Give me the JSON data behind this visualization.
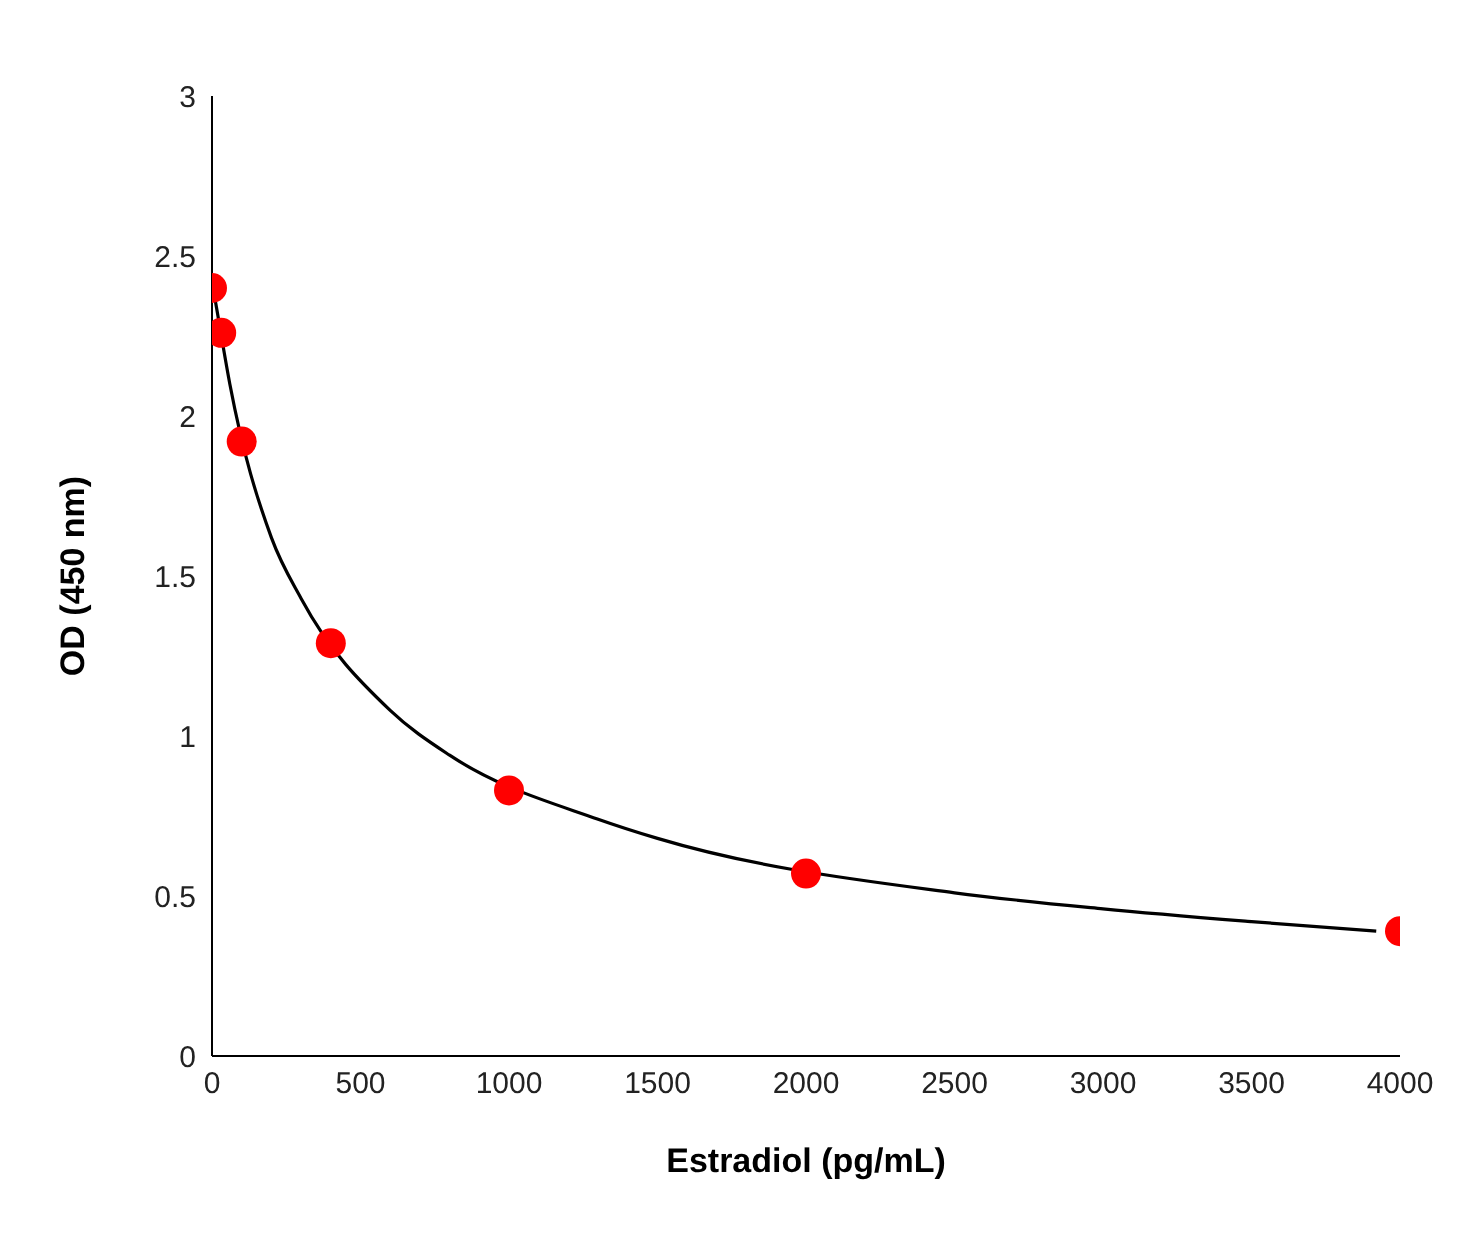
{
  "chart_data": {
    "type": "scatter",
    "xlabel": "Estradiol (pg/mL)",
    "ylabel": "OD (450 nm)",
    "xlim": [
      0,
      4000
    ],
    "ylim": [
      0,
      3
    ],
    "xticks": [
      0,
      500,
      1000,
      1500,
      2000,
      2500,
      3000,
      3500,
      4000
    ],
    "yticks": [
      0,
      0.5,
      1,
      1.5,
      2,
      2.5,
      3
    ],
    "grid": false,
    "series": [
      {
        "type": "line",
        "color": "#000000",
        "marker": "none",
        "line_style": "solid",
        "x": [
          0,
          15,
          60,
          200,
          300,
          600,
          800,
          1300,
          1500,
          2500,
          3000,
          3500,
          3920
        ],
        "values": [
          2.42,
          2.34,
          2.1,
          1.62,
          1.43,
          1.08,
          0.94,
          0.74,
          0.68,
          0.51,
          0.46,
          0.42,
          0.39
        ]
      },
      {
        "type": "scatter",
        "color": "#ff0000",
        "marker": "circle",
        "x": [
          0,
          31,
          100,
          400,
          1000,
          2000,
          4000
        ],
        "values": [
          2.4,
          2.26,
          1.92,
          1.29,
          0.83,
          0.57,
          0.39
        ]
      }
    ]
  }
}
